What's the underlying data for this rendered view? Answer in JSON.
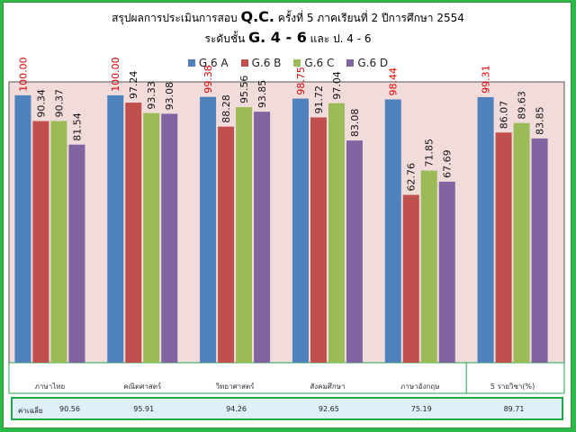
{
  "title": {
    "line1_prefix": "สรุปผลการประเมินการสอบ",
    "line1_big": "Q.C.",
    "line1_suffix": "ครั้งที่ 5  ภาคเรียนที่ 2  ปีการศึกษา 2554",
    "line2_prefix": "ระดับชั้น",
    "line2_big": "G. 4 - 6",
    "line2_suffix": "และ  ป. 4 - 6"
  },
  "colors": {
    "plot_background": "#f2dcdb",
    "page_background": "#2db84a",
    "highlight_label": "#e00000",
    "series": [
      "#4f81bd",
      "#c0504d",
      "#9bbb59",
      "#8064a2"
    ]
  },
  "chart_data": {
    "type": "bar",
    "categories": [
      "ภาษาไทย",
      "คณิตศาสตร์",
      "วิทยาศาสตร์",
      "สังคมศึกษา",
      "ภาษาอังกฤษ",
      "5 รายวิชา(%)"
    ],
    "series": [
      {
        "name": "G.6 A",
        "values": [
          100.0,
          100.0,
          99.38,
          98.75,
          98.44,
          99.31
        ]
      },
      {
        "name": "G.6 B",
        "values": [
          90.34,
          97.24,
          88.28,
          91.72,
          62.76,
          86.07
        ]
      },
      {
        "name": "G.6 C",
        "values": [
          90.37,
          93.33,
          95.56,
          97.04,
          71.85,
          89.63
        ]
      },
      {
        "name": "G.6 D",
        "values": [
          81.54,
          93.08,
          93.85,
          83.08,
          67.69,
          83.85
        ]
      }
    ],
    "value_labels": [
      [
        "100.00",
        "100.00",
        "99.38",
        "98.75",
        "98.44",
        "99.31"
      ],
      [
        "90.34",
        "97.24",
        "88.28",
        "91.72",
        "62.76",
        "86.07"
      ],
      [
        "90.37",
        "93.33",
        "95.56",
        "97.04",
        "71.85",
        "89.63"
      ],
      [
        "81.54",
        "93.08",
        "93.85",
        "83.08",
        "67.69",
        "83.85"
      ]
    ],
    "highlighted_series": "G.6 A",
    "legend_position": "top",
    "grid": false,
    "ylim": [
      0,
      105
    ],
    "averages": {
      "label": "ค่าเฉลี่ย",
      "values": [
        "90.56",
        "95.91",
        "94.26",
        "92.65",
        "75.19",
        "89.71"
      ]
    }
  }
}
